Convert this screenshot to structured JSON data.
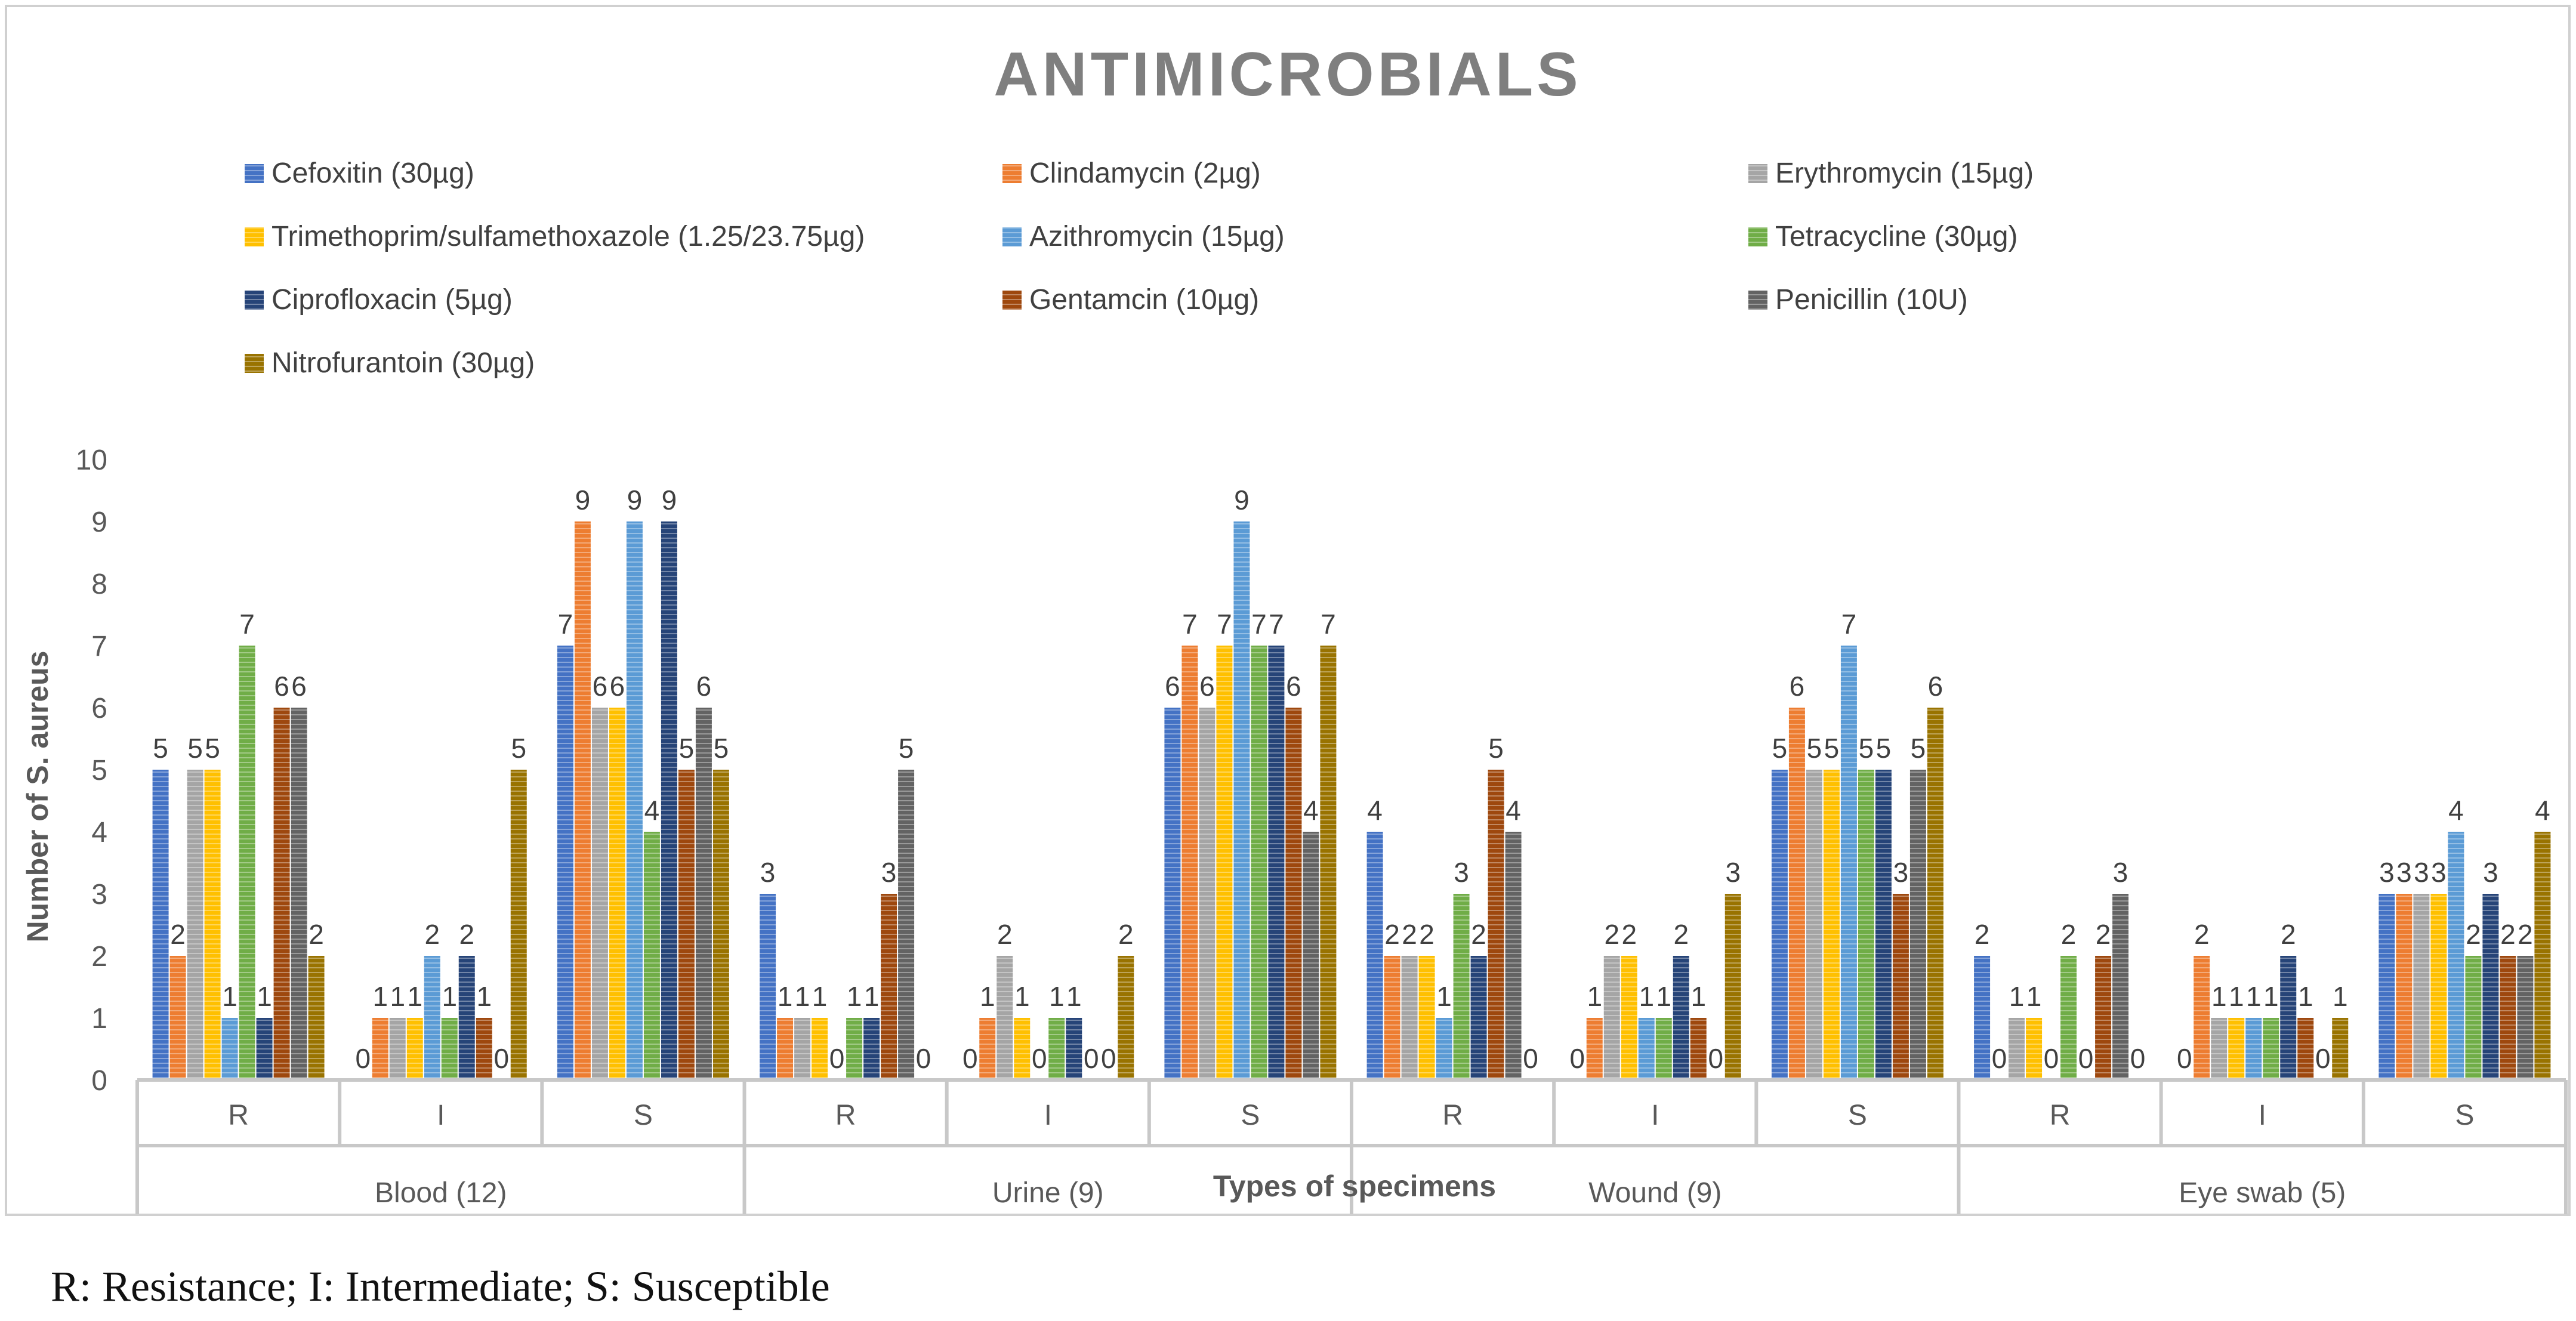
{
  "chart_data": {
    "type": "bar",
    "title": "ANTIMICROBIALS",
    "xlabel": "Types of specimens",
    "ylabel": "Number of S. aureus",
    "ylim": [
      0,
      10
    ],
    "yticks": [
      "0",
      "1",
      "2",
      "3",
      "4",
      "5",
      "6",
      "7",
      "8",
      "9",
      "10"
    ],
    "groups": [
      {
        "label": "Blood (12)",
        "subcategories": [
          "R",
          "I",
          "S"
        ]
      },
      {
        "label": "Urine (9)",
        "subcategories": [
          "R",
          "I",
          "S"
        ]
      },
      {
        "label": "Wound (9)",
        "subcategories": [
          "R",
          "I",
          "S"
        ]
      },
      {
        "label": "Eye swab (5)",
        "subcategories": [
          "R",
          "I",
          "S"
        ]
      }
    ],
    "legend_position": "top",
    "series": [
      {
        "name": "Cefoxitin (30µg)",
        "color": "#4472C4",
        "values": [
          5,
          0,
          7,
          3,
          0,
          6,
          4,
          0,
          5,
          2,
          0,
          3
        ]
      },
      {
        "name": "Clindamycin (2µg)",
        "color": "#ED7D31",
        "values": [
          2,
          1,
          9,
          1,
          1,
          7,
          2,
          1,
          6,
          0,
          2,
          3
        ]
      },
      {
        "name": "Erythromycin (15µg)",
        "color": "#A5A5A5",
        "values": [
          5,
          1,
          6,
          1,
          2,
          6,
          2,
          2,
          5,
          1,
          1,
          3
        ]
      },
      {
        "name": "Trimethoprim/sulfamethoxazole (1.25/23.75µg)",
        "color": "#FFC000",
        "values": [
          5,
          1,
          6,
          1,
          1,
          7,
          2,
          2,
          5,
          1,
          1,
          3
        ]
      },
      {
        "name": "Azithromycin (15µg)",
        "color": "#5B9BD5",
        "values": [
          1,
          2,
          9,
          0,
          0,
          9,
          1,
          1,
          7,
          0,
          1,
          4
        ]
      },
      {
        "name": "Tetracycline (30µg)",
        "color": "#70AD47",
        "values": [
          7,
          1,
          4,
          1,
          1,
          7,
          3,
          1,
          5,
          2,
          1,
          2
        ]
      },
      {
        "name": "Ciprofloxacin (5µg)",
        "color": "#264478",
        "values": [
          1,
          2,
          9,
          1,
          1,
          7,
          2,
          2,
          5,
          0,
          2,
          3
        ]
      },
      {
        "name": "Gentamcin (10µg)",
        "color": "#9E480E",
        "values": [
          6,
          1,
          5,
          3,
          0,
          6,
          5,
          1,
          3,
          2,
          1,
          2
        ]
      },
      {
        "name": "Penicillin (10U)",
        "color": "#636363",
        "values": [
          6,
          0,
          6,
          5,
          0,
          4,
          4,
          0,
          5,
          3,
          0,
          2
        ]
      },
      {
        "name": "Nitrofurantoin (30µg)",
        "color": "#997300",
        "values": [
          2,
          5,
          5,
          0,
          2,
          7,
          0,
          3,
          6,
          0,
          1,
          4
        ]
      }
    ]
  },
  "footnote": "R: Resistance; I: Intermediate; S: Susceptible"
}
